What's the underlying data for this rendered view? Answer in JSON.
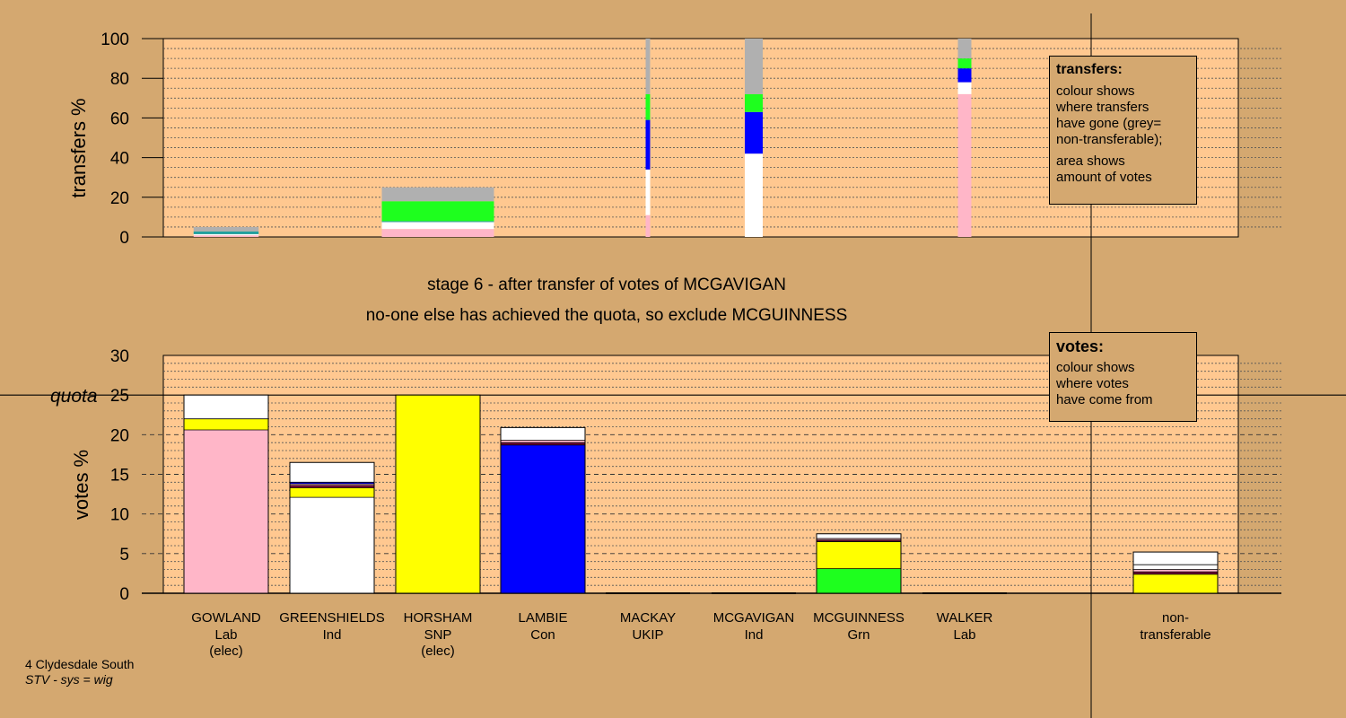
{
  "chart_data": [
    {
      "type": "bar",
      "name": "transfers",
      "ylabel": "transfers %",
      "ylim": [
        0,
        100
      ],
      "yticks": [
        0,
        20,
        40,
        60,
        80,
        100
      ],
      "grid": "dotted",
      "colors": {
        "Lab": "#ffb6c8",
        "Ind": "#ffffff",
        "SNP": "#ffff00",
        "Con": "#0000ff",
        "Grn": "#1eff1e",
        "non-transferable": "#b0b0b0",
        "UKIP": "#7a0a3a",
        "other": "#20a0a0"
      },
      "bars": [
        {
          "candidate": "GOWLAND",
          "width_share": 0.58,
          "segments": [
            {
              "party": "Lab",
              "value": 0.8
            },
            {
              "party": "Ind",
              "value": 0.6
            },
            {
              "party": "other",
              "value": 1.4
            },
            {
              "party": "non-transferable",
              "value": 2.2
            }
          ]
        },
        {
          "candidate": "GREENSHIELDS",
          "width_share": 1.0,
          "segments": [
            {
              "party": "Lab",
              "value": 4.0
            },
            {
              "party": "Ind",
              "value": 3.5
            },
            {
              "party": "other",
              "value": 0.5
            },
            {
              "party": "Grn",
              "value": 10.0
            },
            {
              "party": "non-transferable",
              "value": 7.0
            }
          ]
        },
        {
          "candidate": "MACKAY",
          "width_share": 0.04,
          "segments": [
            {
              "party": "Lab",
              "value": 11.0
            },
            {
              "party": "Ind",
              "value": 23.0
            },
            {
              "party": "Con",
              "value": 25.0
            },
            {
              "party": "Grn",
              "value": 13.0
            },
            {
              "party": "non-transferable",
              "value": 28.0
            }
          ]
        },
        {
          "candidate": "MCGAVIGAN",
          "width_share": 0.16,
          "segments": [
            {
              "party": "Ind",
              "value": 42.0
            },
            {
              "party": "Con",
              "value": 21.0
            },
            {
              "party": "Grn",
              "value": 9.0
            },
            {
              "party": "non-transferable",
              "value": 28.0
            }
          ]
        },
        {
          "candidate": "WALKER",
          "width_share": 0.12,
          "segments": [
            {
              "party": "Lab",
              "value": 72.0
            },
            {
              "party": "Ind",
              "value": 6.0
            },
            {
              "party": "Con",
              "value": 7.0
            },
            {
              "party": "Grn",
              "value": 5.0
            },
            {
              "party": "non-transferable",
              "value": 10.0
            }
          ]
        }
      ]
    },
    {
      "type": "bar",
      "name": "votes",
      "ylabel": "votes %",
      "ylim": [
        0,
        30
      ],
      "yticks": [
        0,
        5,
        10,
        15,
        20,
        25,
        30
      ],
      "quota": 25,
      "quota_label": "quota",
      "grid": "dashed",
      "categories": [
        "GOWLAND",
        "GREENSHIELDS",
        "HORSHAM",
        "LAMBIE",
        "MACKAY",
        "MCGAVIGAN",
        "MCGUINNESS",
        "WALKER",
        "non-transferable"
      ],
      "bars": [
        {
          "candidate": "GOWLAND",
          "party": "Lab",
          "note": "(elec)",
          "segments": [
            {
              "party": "Lab",
              "value": 20.6
            },
            {
              "party": "SNP",
              "value": 1.4
            },
            {
              "party": "Ind",
              "value": 3.0
            }
          ]
        },
        {
          "candidate": "GREENSHIELDS",
          "party": "Ind",
          "note": "",
          "segments": [
            {
              "party": "Ind",
              "value": 12.1
            },
            {
              "party": "SNP",
              "value": 1.2
            },
            {
              "party": "UKIP",
              "value": 0.3
            },
            {
              "party": "Lab",
              "value": 0.2
            },
            {
              "party": "Con",
              "value": 0.2
            },
            {
              "party": "Ind",
              "value": 2.5
            }
          ]
        },
        {
          "candidate": "HORSHAM",
          "party": "SNP",
          "note": "(elec)",
          "segments": [
            {
              "party": "SNP",
              "value": 25.0
            }
          ]
        },
        {
          "candidate": "LAMBIE",
          "party": "Con",
          "note": "",
          "segments": [
            {
              "party": "Con",
              "value": 18.7
            },
            {
              "party": "UKIP",
              "value": 0.3
            },
            {
              "party": "Lab",
              "value": 0.3
            },
            {
              "party": "Ind",
              "value": 1.6
            }
          ]
        },
        {
          "candidate": "MACKAY",
          "party": "UKIP",
          "note": "",
          "segments": []
        },
        {
          "candidate": "MCGAVIGAN",
          "party": "Ind",
          "note": "",
          "segments": []
        },
        {
          "candidate": "MCGUINNESS",
          "party": "Grn",
          "note": "",
          "segments": [
            {
              "party": "Grn",
              "value": 3.1
            },
            {
              "party": "SNP",
              "value": 3.4
            },
            {
              "party": "UKIP",
              "value": 0.2
            },
            {
              "party": "Lab",
              "value": 0.2
            },
            {
              "party": "Ind",
              "value": 0.6
            }
          ]
        },
        {
          "candidate": "WALKER",
          "party": "Lab",
          "note": "",
          "segments": []
        },
        {
          "candidate": "non-",
          "party": "transferable",
          "note": "",
          "segments": [
            {
              "party": "SNP",
              "value": 2.4
            },
            {
              "party": "UKIP",
              "value": 0.3
            },
            {
              "party": "Lab",
              "value": 0.3
            },
            {
              "party": "Ind",
              "value": 0.6
            },
            {
              "party": "Ind",
              "value": 1.6
            }
          ]
        }
      ]
    }
  ],
  "stage_title": "stage 6 - after transfer of votes of MCGAVIGAN",
  "stage_subtitle": "no-one else has achieved the quota, so exclude MCGUINNESS",
  "legend_transfers": {
    "title": "transfers:",
    "lines": [
      "colour shows",
      "where transfers",
      "have gone (grey=",
      "non-transferable);"
    ],
    "lines2": [
      "area shows",
      "amount of votes"
    ]
  },
  "legend_votes": {
    "title": "votes:",
    "lines": [
      "colour shows",
      "where votes",
      "have come from"
    ]
  },
  "footer": {
    "ward": "4 Clydesdale South",
    "system": "STV - sys = wig"
  }
}
